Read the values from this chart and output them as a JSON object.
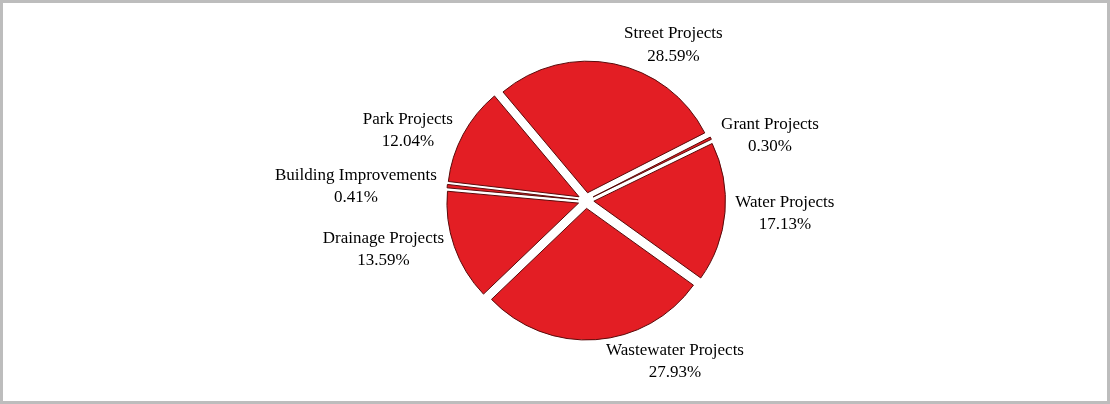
{
  "chart_data": {
    "type": "pie",
    "categories": [
      "Street Projects",
      "Grant Projects",
      "Water Projects",
      "Wastewater Projects",
      "Drainage Projects",
      "Building Improvements",
      "Park Projects"
    ],
    "values": [
      28.59,
      0.3,
      17.13,
      27.93,
      13.59,
      0.41,
      12.04
    ],
    "value_labels": [
      "28.59%",
      "0.30%",
      "17.13%",
      "27.93%",
      "13.59%",
      "0.41%",
      "12.04%"
    ],
    "colors": [
      "#e31e24",
      "#e31e24",
      "#e31e24",
      "#e31e24",
      "#e31e24",
      "#e31e24",
      "#e31e24"
    ]
  }
}
